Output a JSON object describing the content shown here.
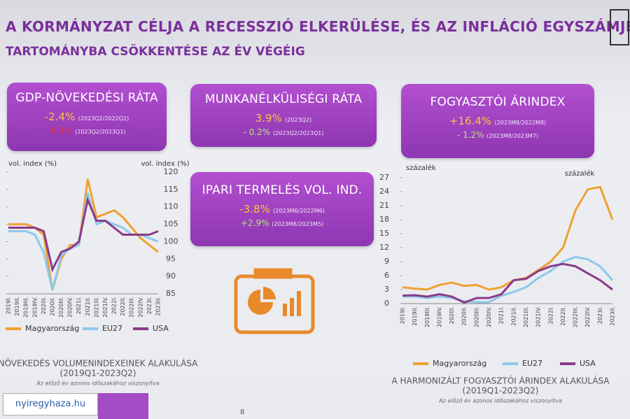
{
  "header": {
    "title_line1": "A KORMÁNYZAT CÉLJA A RECESSZIÓ ELKERÜLÉSE, ÉS AZ INFLÁCIÓ EGYSZÁMJEGYŰ",
    "title_line2": "TARTOMÁNYBA CSÖKKENTÉSE AZ ÉV VÉGÉIG"
  },
  "boxes": [
    {
      "title": "GDP-NÖVEKEDÉSI RÁTA",
      "lines": [
        {
          "value": "-2.4%",
          "period": "(2023Q2/2022Q2)"
        },
        {
          "value": "-0.3%",
          "period": "(2023Q2/2023Q1)"
        }
      ]
    },
    {
      "title": "MUNKANÉLKÜLISÉGI RÁTA",
      "lines": [
        {
          "value": "3.9%",
          "period": "(2023Q2)"
        },
        {
          "value": "- 0.2%",
          "period": "(2023Q2/2023Q1)"
        }
      ]
    },
    {
      "title": "FOGYASZTÓI ÁRINDEX",
      "lines": [
        {
          "value": "+16.4%",
          "period": "(2023M8/2022M8)"
        },
        {
          "value": "- 1.2%",
          "period": "(2023M8/2023M7)"
        }
      ]
    },
    {
      "title": "IPARI TERMELÉS VOL. IND.",
      "lines": [
        {
          "value": "-3.8%",
          "period": "(2023M6/2022M6)"
        },
        {
          "value": "+2.9%",
          "period": "(2023M6/2023M5)"
        }
      ]
    }
  ],
  "chart_data": [
    {
      "type": "line",
      "title": "NÖVEKEDÉS VOLUMENINDEXEINEK ALAKULÁSA",
      "subtitle": "(2019Q1-2023Q2)",
      "note": "Az előző év azonos időszakához viszonyítva",
      "ylabel": "vol. index (%)",
      "y2label": "vol. index (%)",
      "categories": [
        "2019I.",
        "2019II.",
        "2019III.",
        "2019IV.",
        "2020I.",
        "2020II.",
        "2020III.",
        "2020IV.",
        "2021I.",
        "2021II.",
        "2021III.",
        "2021IV.",
        "2022I.",
        "2022II.",
        "2022III.",
        "2022IV.",
        "2023I.",
        "2023II."
      ],
      "ylim": [
        85,
        120
      ],
      "yticks": [
        85,
        90,
        95,
        100,
        105,
        110,
        115,
        120
      ],
      "series": [
        {
          "name": "Magyarország",
          "color": "#f0a030",
          "values": [
            105,
            105,
            105,
            104,
            102,
            86,
            95,
            99,
            99,
            118,
            107,
            108,
            109,
            107,
            104,
            101,
            99,
            97
          ]
        },
        {
          "name": "EU27",
          "color": "#8ec8ea",
          "values": [
            103,
            103,
            103,
            102,
            97,
            86,
            96,
            98,
            99,
            114,
            105,
            106,
            105,
            104,
            102,
            102,
            101,
            100
          ]
        },
        {
          "name": "USA",
          "color": "#8a3a8a",
          "values": [
            104,
            104,
            104,
            104,
            103,
            92,
            97,
            98,
            100,
            112,
            106,
            106,
            104,
            102,
            102,
            102,
            102,
            103
          ]
        }
      ]
    },
    {
      "type": "line",
      "title": "A HARMONIZÁLT FOGYASZTÓI ÁRINDEX ALAKULÁSA",
      "subtitle": "(2019Q1-2023Q2)",
      "note": "Az előző év azonos időszakához viszonyítva",
      "ylabel": "százalék",
      "y2label": "százalék",
      "categories": [
        "2019I.",
        "2019II.",
        "2019III.",
        "2019IV.",
        "2020I.",
        "2020II.",
        "2020III.",
        "2020IV.",
        "2021I.",
        "2021II.",
        "2021III.",
        "2021IV.",
        "2022I.",
        "2022II.",
        "2022III.",
        "2022IV.",
        "2023I.",
        "2023II."
      ],
      "ylim": [
        0,
        27
      ],
      "yticks": [
        0,
        3,
        6,
        9,
        12,
        15,
        18,
        21,
        24,
        27
      ],
      "series": [
        {
          "name": "Magyarország",
          "color": "#f0a030",
          "values": [
            3.5,
            3.2,
            3,
            4,
            4.5,
            3.8,
            4,
            3,
            3.5,
            5,
            5.5,
            7.2,
            9,
            12,
            20,
            24.5,
            25,
            18
          ]
        },
        {
          "name": "EU27",
          "color": "#8ec8ea",
          "values": [
            1.5,
            1.5,
            1.2,
            1.5,
            1.2,
            0.5,
            0.3,
            0.3,
            1.7,
            2.5,
            3.5,
            5.5,
            7,
            9,
            10,
            9.5,
            8,
            5
          ]
        },
        {
          "name": "USA",
          "color": "#8a3a8a",
          "values": [
            1.7,
            1.8,
            1.5,
            2,
            1.5,
            0.2,
            1.2,
            1.2,
            2,
            5,
            5.3,
            7,
            8,
            8.5,
            8,
            6.5,
            5,
            3
          ]
        }
      ]
    }
  ],
  "footer": {
    "page": "8",
    "watermark": "nyiregyhaza.hu"
  }
}
